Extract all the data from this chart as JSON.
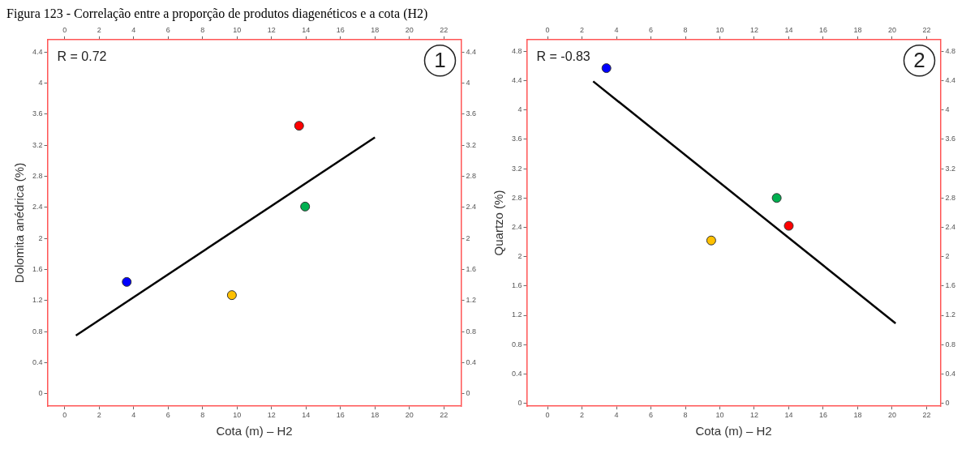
{
  "chart_data": [
    {
      "type": "scatter",
      "title": "Figura 123 - Correlação entre a proporção de produtos diagenéticos e a cota (H2)",
      "xlabel": "Cota (m) – H2",
      "ylabel": "Dolomita anédrica (%)",
      "xlim": [
        -1,
        23
      ],
      "xticks": [
        0,
        2,
        4,
        6,
        8,
        10,
        12,
        14,
        16,
        18,
        20,
        22
      ],
      "ylim": [
        -0.16,
        4.56
      ],
      "yticks": [
        0,
        0.4,
        0.8,
        1.2,
        1.6,
        2,
        2.4,
        2.8,
        3.2,
        3.6,
        4,
        4.4
      ],
      "x2lim": [
        -1,
        23
      ],
      "x2ticks": [
        0,
        2,
        4,
        6,
        8,
        10,
        12,
        14,
        16,
        18,
        20,
        22
      ],
      "y2lim": [
        -0.16,
        4.56
      ],
      "y2ticks": [
        0,
        0.4,
        0.8,
        1.2,
        1.6,
        2,
        2.4,
        2.8,
        3.2,
        3.6,
        4,
        4.4
      ],
      "grid": false,
      "legend": false,
      "annotations": [
        "R = 0.72",
        "1"
      ],
      "series": [
        {
          "marker": "circle",
          "x": [
            3.6,
            9.7,
            13.6,
            13.95
          ],
          "values": [
            1.44,
            1.27,
            3.45,
            2.41
          ],
          "colors": [
            "#0000ff",
            "#ffc000",
            "#ff0000",
            "#00b050"
          ]
        },
        {
          "type": "line",
          "x": [
            0.65,
            18
          ],
          "values": [
            0.75,
            3.3
          ],
          "color": "#000000"
        }
      ]
    },
    {
      "type": "scatter",
      "xlabel": "Cota (m) – H2",
      "ylabel": "Quartzo (%)",
      "xlim": [
        -1.2,
        22.8
      ],
      "xticks": [
        0,
        2,
        4,
        6,
        8,
        10,
        12,
        14,
        16,
        18,
        20,
        22
      ],
      "ylim": [
        -0.04,
        4.96
      ],
      "yticks": [
        0,
        0.4,
        0.8,
        1.2,
        1.6,
        2,
        2.4,
        2.8,
        3.2,
        3.6,
        4,
        4.4,
        4.8
      ],
      "x2lim": [
        -1.2,
        22.8
      ],
      "x2ticks": [
        0,
        2,
        4,
        6,
        8,
        10,
        12,
        14,
        16,
        18,
        20,
        22
      ],
      "y2lim": [
        -0.04,
        4.96
      ],
      "y2ticks": [
        0,
        0.4,
        0.8,
        1.2,
        1.6,
        2,
        2.4,
        2.8,
        3.2,
        3.6,
        4,
        4.4,
        4.8
      ],
      "grid": false,
      "legend": false,
      "annotations": [
        "R = -0.83",
        "2"
      ],
      "series": [
        {
          "marker": "circle",
          "x": [
            3.42,
            9.5,
            13.3,
            14.0
          ],
          "values": [
            4.57,
            2.22,
            2.8,
            2.42
          ],
          "colors": [
            "#0000ff",
            "#ffc000",
            "#00b050",
            "#ff0000"
          ]
        },
        {
          "type": "line",
          "x": [
            2.65,
            20.2
          ],
          "values": [
            4.39,
            1.09
          ],
          "color": "#000000"
        }
      ]
    }
  ]
}
